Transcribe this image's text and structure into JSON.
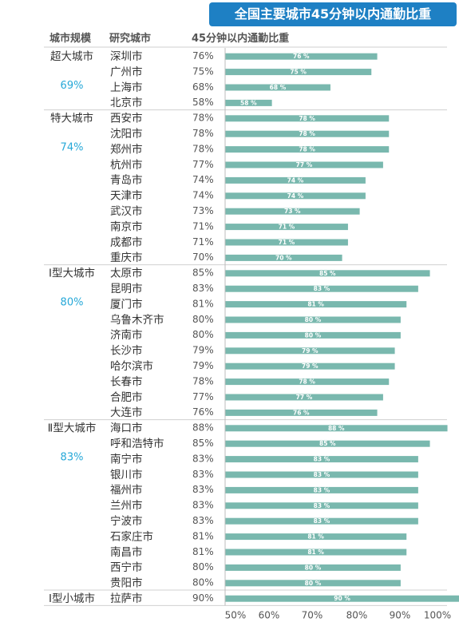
{
  "title": "全国主要城市45分钟以内通勤比重",
  "headers": {
    "category": "城市规模",
    "city": "研究城市",
    "value": "45分钟以内通勤比重"
  },
  "chart_data": {
    "type": "bar",
    "orientation": "horizontal",
    "xlim": [
      50,
      100
    ],
    "x_ticks": [
      "50%",
      "60%",
      "70%",
      "80%",
      "90%",
      "100%"
    ],
    "colors": {
      "bar": "#79b8ae",
      "avg_text": "#26a8d8",
      "title_bg": "#1e80c4"
    },
    "groups": [
      {
        "name": "超大城市",
        "avg": "69%",
        "cities": [
          {
            "city": "深圳市",
            "value": 76,
            "label": "76%",
            "bar_label": "76 %"
          },
          {
            "city": "广州市",
            "value": 75,
            "label": "75%",
            "bar_label": "75 %"
          },
          {
            "city": "上海市",
            "value": 68,
            "label": "68%",
            "bar_label": "68 %"
          },
          {
            "city": "北京市",
            "value": 58,
            "label": "58%",
            "bar_label": "58 %"
          }
        ]
      },
      {
        "name": "特大城市",
        "avg": "74%",
        "cities": [
          {
            "city": "西安市",
            "value": 78,
            "label": "78%",
            "bar_label": "78 %"
          },
          {
            "city": "沈阳市",
            "value": 78,
            "label": "78%",
            "bar_label": "78 %"
          },
          {
            "city": "郑州市",
            "value": 78,
            "label": "78%",
            "bar_label": "78 %"
          },
          {
            "city": "杭州市",
            "value": 77,
            "label": "77%",
            "bar_label": "77 %"
          },
          {
            "city": "青岛市",
            "value": 74,
            "label": "74%",
            "bar_label": "74 %"
          },
          {
            "city": "天津市",
            "value": 74,
            "label": "74%",
            "bar_label": "74 %"
          },
          {
            "city": "武汉市",
            "value": 73,
            "label": "73%",
            "bar_label": "73 %"
          },
          {
            "city": "南京市",
            "value": 71,
            "label": "71%",
            "bar_label": "71 %"
          },
          {
            "city": "成都市",
            "value": 71,
            "label": "71%",
            "bar_label": "71 %"
          },
          {
            "city": "重庆市",
            "value": 70,
            "label": "70%",
            "bar_label": "70 %"
          }
        ]
      },
      {
        "name": "Ⅰ型大城市",
        "avg": "80%",
        "cities": [
          {
            "city": "太原市",
            "value": 85,
            "label": "85%",
            "bar_label": "85 %"
          },
          {
            "city": "昆明市",
            "value": 83,
            "label": "83%",
            "bar_label": "83 %"
          },
          {
            "city": "厦门市",
            "value": 81,
            "label": "81%",
            "bar_label": "81 %"
          },
          {
            "city": "乌鲁木齐市",
            "value": 80,
            "label": "80%",
            "bar_label": "80 %"
          },
          {
            "city": "济南市",
            "value": 80,
            "label": "80%",
            "bar_label": "80 %"
          },
          {
            "city": "长沙市",
            "value": 79,
            "label": "79%",
            "bar_label": "79 %"
          },
          {
            "city": "哈尔滨市",
            "value": 79,
            "label": "79%",
            "bar_label": "79 %"
          },
          {
            "city": "长春市",
            "value": 78,
            "label": "78%",
            "bar_label": "78 %"
          },
          {
            "city": "合肥市",
            "value": 77,
            "label": "77%",
            "bar_label": "77 %"
          },
          {
            "city": "大连市",
            "value": 76,
            "label": "76%",
            "bar_label": "76 %"
          }
        ]
      },
      {
        "name": "Ⅱ型大城市",
        "avg": "83%",
        "cities": [
          {
            "city": "海口市",
            "value": 88,
            "label": "88%",
            "bar_label": "88 %"
          },
          {
            "city": "呼和浩特市",
            "value": 85,
            "label": "85%",
            "bar_label": "85 %"
          },
          {
            "city": "南宁市",
            "value": 83,
            "label": "83%",
            "bar_label": "83 %"
          },
          {
            "city": "银川市",
            "value": 83,
            "label": "83%",
            "bar_label": "83 %"
          },
          {
            "city": "福州市",
            "value": 83,
            "label": "83%",
            "bar_label": "83 %"
          },
          {
            "city": "兰州市",
            "value": 83,
            "label": "83%",
            "bar_label": "83 %"
          },
          {
            "city": "宁波市",
            "value": 83,
            "label": "83%",
            "bar_label": "83 %"
          },
          {
            "city": "石家庄市",
            "value": 81,
            "label": "81%",
            "bar_label": "81 %"
          },
          {
            "city": "南昌市",
            "value": 81,
            "label": "81%",
            "bar_label": "81 %"
          },
          {
            "city": "西宁市",
            "value": 80,
            "label": "80%",
            "bar_label": "80 %"
          },
          {
            "city": "贵阳市",
            "value": 80,
            "label": "80%",
            "bar_label": "80 %"
          }
        ]
      },
      {
        "name": "Ⅰ型小城市",
        "avg": "",
        "cities": [
          {
            "city": "拉萨市",
            "value": 90,
            "label": "90%",
            "bar_label": "90 %"
          }
        ]
      }
    ]
  }
}
